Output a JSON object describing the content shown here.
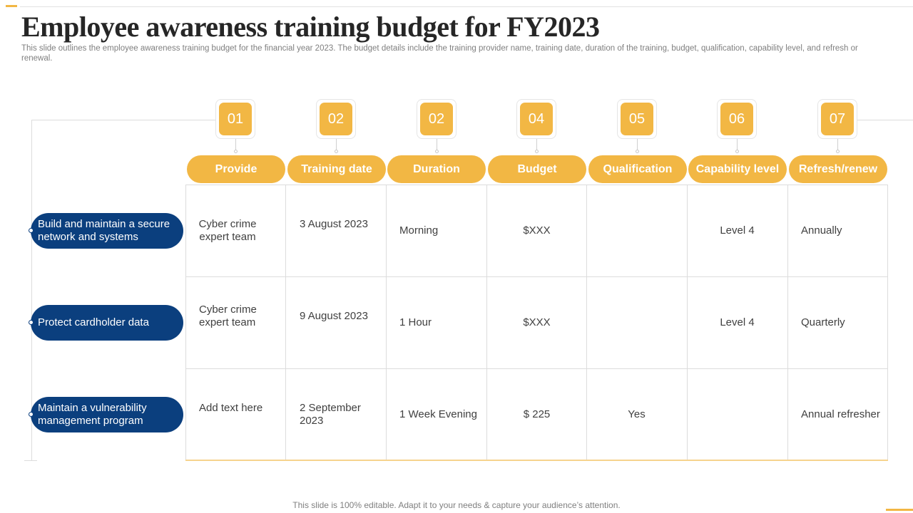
{
  "slide": {
    "title": "Employee awareness training budget for FY2023",
    "subtitle": "This slide outlines the employee awareness training budget for the financial year 2023. The budget details include the training provider name, training date, duration of the training, budget, qualification, capability level, and refresh or renewal.",
    "footer": "This slide is 100% editable. Adapt it to your needs & capture your audience’s attention."
  },
  "columns": [
    {
      "number": "01",
      "label": "Provide"
    },
    {
      "number": "02",
      "label": "Training date"
    },
    {
      "number": "02",
      "label": "Duration"
    },
    {
      "number": "04",
      "label": "Budget"
    },
    {
      "number": "05",
      "label": "Qualification"
    },
    {
      "number": "06",
      "label": "Capability level"
    },
    {
      "number": "07",
      "label": "Refresh/renew"
    }
  ],
  "rows": [
    {
      "label": "Build and maintain a secure network and systems",
      "cells": [
        "Cyber crime expert team",
        "3 August 2023",
        "Morning",
        "$XXX",
        "",
        "Level 4",
        "Annually"
      ]
    },
    {
      "label": "Protect cardholder data",
      "cells": [
        "Cyber crime expert team",
        "9 August 2023",
        "1 Hour",
        "$XXX",
        "",
        "Level 4",
        "Quarterly"
      ]
    },
    {
      "label": "Maintain a vulnerability management program",
      "cells": [
        "Add text here",
        "2 September 2023",
        "1 Week Evening",
        "$ 225",
        "Yes",
        "",
        "Annual refresher"
      ]
    }
  ],
  "colors": {
    "accent": "#f2b744",
    "row_label": "#0b3f7e",
    "grid": "#dcdcdc"
  }
}
